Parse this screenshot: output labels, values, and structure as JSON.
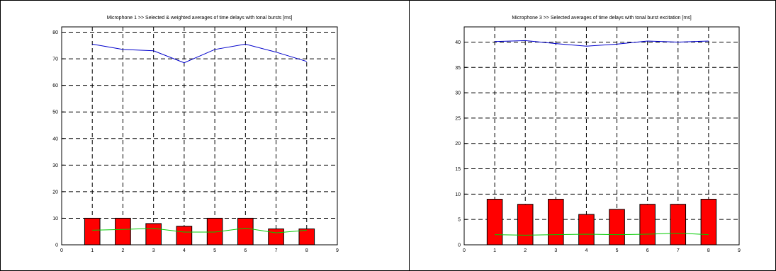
{
  "chart_data": [
    {
      "type": "bar",
      "title": "Microphone 1 >> Selected & weighted averages of time delays with tonal bursts [ms]",
      "xlabel": "",
      "ylabel": "",
      "xlim": [
        0,
        9
      ],
      "ylim": [
        0,
        82
      ],
      "xticks": [
        "0",
        "1",
        "2",
        "3",
        "4",
        "5",
        "6",
        "7",
        "8",
        "9"
      ],
      "yticks": [
        "0",
        "10",
        "20",
        "30",
        "40",
        "50",
        "60",
        "70",
        "80"
      ],
      "grid": true,
      "categories": [
        1,
        2,
        3,
        4,
        5,
        6,
        7,
        8
      ],
      "values": [
        10,
        10,
        8,
        7,
        10,
        10,
        6,
        6
      ],
      "bar_color": "#ff0000",
      "lines": [
        {
          "color": "#0000cc",
          "x": [
            1,
            2,
            3,
            4,
            5,
            6,
            7,
            8
          ],
          "y": [
            75.5,
            73.5,
            73,
            68.5,
            73.5,
            75.5,
            72.5,
            69
          ]
        },
        {
          "color": "#00cc00",
          "x": [
            1,
            2,
            3,
            4,
            5,
            6,
            7,
            8
          ],
          "y": [
            5.5,
            5.8,
            6.2,
            4.8,
            4.8,
            6.3,
            4.5,
            5.5
          ]
        }
      ]
    },
    {
      "type": "bar",
      "title": "Microphone 3 >> Selected averages of time delays with tonal burst excitation [ms]",
      "xlabel": "",
      "ylabel": "",
      "xlim": [
        0,
        9
      ],
      "ylim": [
        0,
        43
      ],
      "xticks": [
        "0",
        "1",
        "2",
        "3",
        "4",
        "5",
        "6",
        "7",
        "8",
        "9"
      ],
      "yticks": [
        "0",
        "5",
        "10",
        "15",
        "20",
        "25",
        "30",
        "35",
        "40"
      ],
      "grid": true,
      "categories": [
        1,
        2,
        3,
        4,
        5,
        6,
        7,
        8
      ],
      "values": [
        9,
        8,
        9,
        6,
        7,
        8,
        8,
        9
      ],
      "bar_color": "#ff0000",
      "lines": [
        {
          "color": "#0000cc",
          "x": [
            1,
            2,
            3,
            4,
            5,
            6,
            7,
            8
          ],
          "y": [
            40.1,
            40.3,
            39.7,
            39.2,
            39.6,
            40.2,
            40,
            40.2
          ]
        },
        {
          "color": "#00cc00",
          "x": [
            1,
            2,
            3,
            4,
            5,
            6,
            7,
            8
          ],
          "y": [
            2,
            1.9,
            2,
            2.1,
            2,
            2.1,
            2.3,
            2
          ]
        }
      ]
    }
  ]
}
